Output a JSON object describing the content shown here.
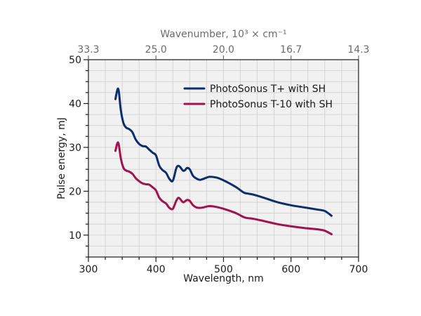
{
  "chart_data": {
    "type": "line",
    "xlabel": "Wavelength, nm",
    "ylabel": "Pulse energy, mJ",
    "top_xlabel": "Wavenumber, 10³ × cm⁻¹",
    "xlim": [
      300,
      700
    ],
    "ylim": [
      5,
      50
    ],
    "x_ticks": [
      300,
      400,
      500,
      600,
      700
    ],
    "x_tick_labels": [
      "300",
      "400",
      "500",
      "600",
      "700"
    ],
    "y_ticks": [
      10,
      20,
      30,
      40,
      50
    ],
    "y_tick_labels": [
      "10",
      "20",
      "30",
      "40",
      "50"
    ],
    "top_ticks": [
      {
        "wavelength": 300,
        "label": "33.3"
      },
      {
        "wavelength": 400,
        "label": "25.0"
      },
      {
        "wavelength": 500,
        "label": "20.0"
      },
      {
        "wavelength": 600,
        "label": "16.7"
      },
      {
        "wavelength": 700,
        "label": "14.3"
      }
    ],
    "grid": true,
    "legend_position": "top-right",
    "series": [
      {
        "name": "PhotoSonus T+ with SH",
        "color": "#0d2d6b",
        "x": [
          340,
          343,
          345,
          348,
          352,
          356,
          360,
          365,
          370,
          375,
          380,
          385,
          390,
          395,
          400,
          405,
          410,
          415,
          420,
          425,
          430,
          433,
          436,
          440,
          443,
          446,
          450,
          455,
          460,
          465,
          470,
          475,
          480,
          490,
          500,
          510,
          520,
          530,
          535,
          545,
          560,
          580,
          600,
          620,
          640,
          650,
          660
        ],
        "y": [
          41.0,
          43.2,
          42.8,
          38.5,
          35.5,
          34.5,
          34.2,
          33.5,
          31.8,
          30.8,
          30.3,
          30.2,
          29.5,
          28.8,
          28.2,
          25.8,
          24.8,
          24.2,
          22.8,
          22.4,
          25.2,
          25.8,
          25.5,
          24.7,
          24.8,
          25.3,
          25.0,
          23.5,
          22.9,
          22.6,
          22.8,
          23.1,
          23.3,
          23.1,
          22.5,
          21.7,
          20.8,
          19.7,
          19.5,
          19.2,
          18.5,
          17.5,
          16.8,
          16.3,
          15.8,
          15.5,
          14.4
        ]
      },
      {
        "name": "PhotoSonus T-10 with SH",
        "color": "#a0134d",
        "x": [
          340,
          343,
          345,
          348,
          352,
          356,
          360,
          365,
          370,
          375,
          380,
          385,
          390,
          395,
          400,
          405,
          410,
          415,
          420,
          425,
          430,
          433,
          436,
          440,
          443,
          446,
          450,
          455,
          460,
          465,
          470,
          475,
          480,
          490,
          500,
          510,
          520,
          530,
          535,
          545,
          560,
          580,
          600,
          620,
          640,
          650,
          660
        ],
        "y": [
          29.2,
          31.0,
          30.6,
          27.5,
          25.3,
          24.7,
          24.5,
          24.0,
          23.0,
          22.3,
          21.8,
          21.6,
          21.5,
          20.9,
          20.2,
          18.5,
          17.7,
          17.2,
          16.2,
          16.0,
          17.8,
          18.5,
          18.2,
          17.5,
          17.7,
          18.0,
          17.8,
          16.8,
          16.3,
          16.2,
          16.3,
          16.5,
          16.6,
          16.4,
          16.0,
          15.5,
          14.9,
          14.1,
          13.9,
          13.7,
          13.2,
          12.5,
          12.0,
          11.6,
          11.3,
          11.0,
          10.2
        ]
      }
    ]
  }
}
